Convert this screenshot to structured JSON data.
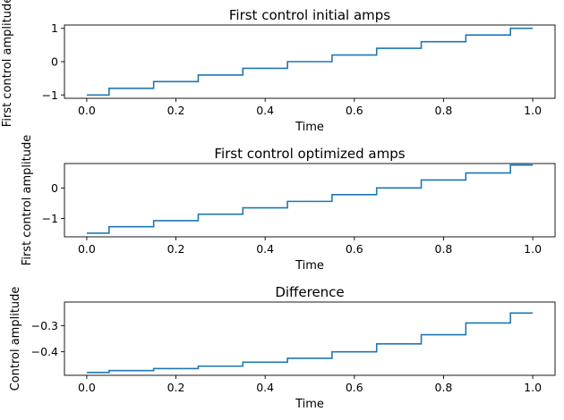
{
  "chart_data": [
    {
      "type": "line",
      "title": "First control initial amps",
      "xlabel": "Time",
      "ylabel": "First control amplitude",
      "xlim": [
        -0.05,
        1.05
      ],
      "ylim": [
        -1.1,
        1.1
      ],
      "xticks": [
        0.0,
        0.2,
        0.4,
        0.6,
        0.8,
        1.0
      ],
      "xtick_labels": [
        "0.0",
        "0.2",
        "0.4",
        "0.6",
        "0.8",
        "1.0"
      ],
      "yticks": [
        -1,
        0,
        1
      ],
      "ytick_labels": [
        "−1",
        "0",
        "1"
      ],
      "grid": false,
      "drawstyle": "steps",
      "series": [
        {
          "color": "#1f77b4",
          "x": [
            0.0,
            0.1,
            0.2,
            0.3,
            0.4,
            0.5,
            0.6,
            0.7,
            0.8,
            0.9,
            1.0
          ],
          "y": [
            -1.0,
            -0.8,
            -0.6,
            -0.4,
            -0.2,
            0.0,
            0.2,
            0.4,
            0.6,
            0.8,
            1.0
          ]
        }
      ]
    },
    {
      "type": "line",
      "title": "First control optimized amps",
      "xlabel": "Time",
      "ylabel": "First control amplitude",
      "xlim": [
        -0.05,
        1.05
      ],
      "ylim": [
        -1.6,
        0.8
      ],
      "xticks": [
        0.0,
        0.2,
        0.4,
        0.6,
        0.8,
        1.0
      ],
      "xtick_labels": [
        "0.0",
        "0.2",
        "0.4",
        "0.6",
        "0.8",
        "1.0"
      ],
      "yticks": [
        -1,
        0
      ],
      "ytick_labels": [
        "−1",
        "0"
      ],
      "grid": false,
      "drawstyle": "steps",
      "series": [
        {
          "color": "#1f77b4",
          "x": [
            0.0,
            0.1,
            0.2,
            0.3,
            0.4,
            0.5,
            0.6,
            0.7,
            0.8,
            0.9,
            1.0
          ],
          "y": [
            -1.48,
            -1.27,
            -1.07,
            -0.86,
            -0.65,
            -0.44,
            -0.22,
            0.0,
            0.26,
            0.49,
            0.75
          ]
        }
      ]
    },
    {
      "type": "line",
      "title": "Difference",
      "xlabel": "Time",
      "ylabel": "Control amplitude",
      "xlim": [
        -0.05,
        1.05
      ],
      "ylim": [
        -0.49,
        -0.21
      ],
      "xticks": [
        0.0,
        0.2,
        0.4,
        0.6,
        0.8,
        1.0
      ],
      "xtick_labels": [
        "0.0",
        "0.2",
        "0.4",
        "0.6",
        "0.8",
        "1.0"
      ],
      "yticks": [
        -0.4,
        -0.3
      ],
      "ytick_labels": [
        "−0.4",
        "−0.3"
      ],
      "grid": false,
      "drawstyle": "steps",
      "series": [
        {
          "color": "#1f77b4",
          "x": [
            0.0,
            0.1,
            0.2,
            0.3,
            0.4,
            0.5,
            0.6,
            0.7,
            0.8,
            0.9,
            1.0
          ],
          "y": [
            -0.479,
            -0.472,
            -0.464,
            -0.455,
            -0.44,
            -0.425,
            -0.4,
            -0.37,
            -0.335,
            -0.29,
            -0.252
          ]
        }
      ]
    }
  ]
}
